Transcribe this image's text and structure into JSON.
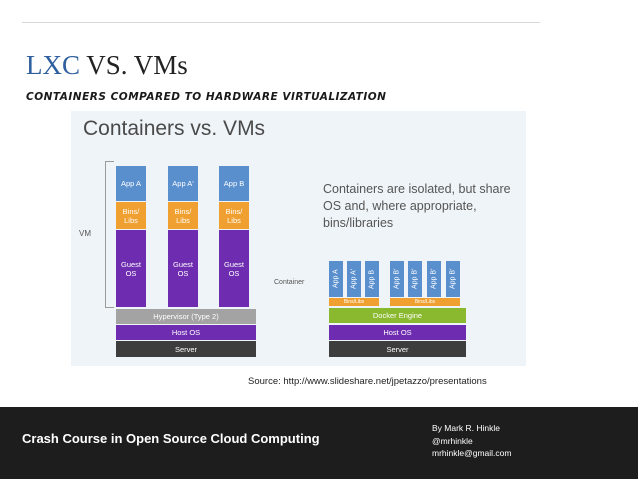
{
  "slide": {
    "title_accent": "LXC",
    "title_rest": " VS. VMs",
    "subtitle": "Containers Compared to Hardware Virtualization",
    "source": "Source: http://www.slideshare.net/jpetazzo/presentations"
  },
  "figure": {
    "title": "Containers vs. VMs",
    "vm_label": "VM",
    "container_label": "Container",
    "note": "Containers are isolated, but share OS and, where appropriate, bins/libraries",
    "vm_stack": {
      "apps": [
        "App A",
        "App A'",
        "App B"
      ],
      "bins": [
        "Bins/ Libs",
        "Bins/ Libs",
        "Bins/ Libs"
      ],
      "guests": [
        "Guest OS",
        "Guest OS",
        "Guest OS"
      ],
      "hypervisor": "Hypervisor (Type 2)",
      "host_os": "Host OS",
      "server": "Server"
    },
    "container_stack": {
      "apps": [
        "App A",
        "App A'",
        "App B",
        "App B'",
        "App B'",
        "App B'",
        "App B'"
      ],
      "bins": [
        "Bins/Libs",
        "Bins/Libs"
      ],
      "engine": "Docker Engine",
      "host_os": "Host OS",
      "server": "Server"
    },
    "colors": {
      "app": "#5a8fce",
      "bins": "#f0a030",
      "guest_os": "#6e2db0",
      "hypervisor": "#a3a3a3",
      "server": "#3d3d3d",
      "docker": "#8ab82e"
    }
  },
  "footer": {
    "course_title": "Crash Course in Open Source Cloud Computing",
    "author": "By Mark R. Hinkle",
    "handle": "@mrhinkle",
    "email": "mrhinkle@gmail.com"
  }
}
